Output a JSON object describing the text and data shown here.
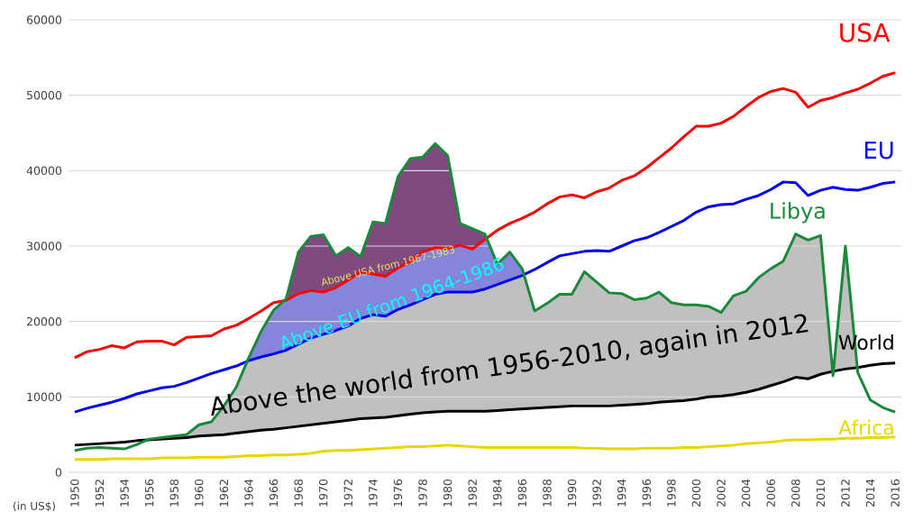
{
  "chart_data": {
    "type": "line",
    "ylabel": "(in US$)",
    "x": [
      1950,
      1951,
      1952,
      1953,
      1954,
      1955,
      1956,
      1957,
      1958,
      1959,
      1960,
      1961,
      1962,
      1963,
      1964,
      1965,
      1966,
      1967,
      1968,
      1969,
      1970,
      1971,
      1972,
      1973,
      1974,
      1975,
      1976,
      1977,
      1978,
      1979,
      1980,
      1981,
      1982,
      1983,
      1984,
      1985,
      1986,
      1987,
      1988,
      1989,
      1990,
      1991,
      1992,
      1993,
      1994,
      1995,
      1996,
      1997,
      1998,
      1999,
      2000,
      2001,
      2002,
      2003,
      2004,
      2005,
      2006,
      2007,
      2008,
      2009,
      2010,
      2011,
      2012,
      2013,
      2014,
      2015,
      2016
    ],
    "series": [
      {
        "name": "USA",
        "color": "#ff0000",
        "values": [
          15200,
          16000,
          16300,
          16800,
          16500,
          17300,
          17400,
          17400,
          16900,
          17900,
          18000,
          18100,
          19000,
          19500,
          20400,
          21400,
          22500,
          22800,
          23700,
          24100,
          23900,
          24500,
          25500,
          26600,
          26300,
          26000,
          27100,
          27900,
          29200,
          29800,
          29700,
          30100,
          29600,
          30900,
          32100,
          33000,
          33700,
          34500,
          35600,
          36500,
          36800,
          36400,
          37200,
          37700,
          38700,
          39300,
          40400,
          41700,
          43000,
          44500,
          45900,
          45900,
          46300,
          47200,
          48500,
          49700,
          50500,
          50900,
          50400,
          48400,
          49300,
          49700,
          50300,
          50800,
          51600,
          52500,
          53000
        ]
      },
      {
        "name": "EU",
        "color": "#0000ff",
        "values": [
          8000,
          8500,
          8900,
          9300,
          9800,
          10400,
          10800,
          11200,
          11400,
          11900,
          12500,
          13100,
          13600,
          14100,
          14800,
          15300,
          15700,
          16200,
          17000,
          17800,
          18300,
          18800,
          19400,
          20400,
          20900,
          20700,
          21600,
          22200,
          22900,
          23600,
          23900,
          23900,
          23900,
          24300,
          24900,
          25500,
          26100,
          26900,
          27800,
          28700,
          29000,
          29300,
          29400,
          29300,
          30000,
          30700,
          31100,
          31800,
          32600,
          33400,
          34500,
          35200,
          35500,
          35600,
          36200,
          36700,
          37500,
          38500,
          38400,
          36700,
          37400,
          37800,
          37500,
          37400,
          37800,
          38300,
          38500
        ]
      },
      {
        "name": "Libya",
        "color": "#1a8a3a",
        "values": [
          2900,
          3200,
          3300,
          3200,
          3100,
          3700,
          4400,
          4600,
          4800,
          5000,
          6300,
          6700,
          8800,
          11300,
          15200,
          18700,
          21500,
          23000,
          29200,
          31300,
          31500,
          28700,
          29800,
          28600,
          33200,
          33000,
          39200,
          41600,
          41800,
          43600,
          42000,
          33000,
          32300,
          31600,
          27600,
          29200,
          27000,
          21400,
          22400,
          23600,
          23600,
          26600,
          25200,
          23800,
          23700,
          22900,
          23100,
          23900,
          22500,
          22200,
          22200,
          22000,
          21200,
          23400,
          24000,
          25800,
          27000,
          28000,
          31600,
          30800,
          31400,
          12800,
          30000,
          13200,
          9600,
          8600,
          8000
        ]
      },
      {
        "name": "World",
        "color": "#000000",
        "values": [
          3600,
          3700,
          3800,
          3900,
          4000,
          4200,
          4300,
          4400,
          4500,
          4600,
          4800,
          4900,
          5000,
          5200,
          5400,
          5600,
          5700,
          5900,
          6100,
          6300,
          6500,
          6700,
          6900,
          7100,
          7200,
          7300,
          7500,
          7700,
          7900,
          8000,
          8100,
          8100,
          8100,
          8100,
          8200,
          8300,
          8400,
          8500,
          8600,
          8700,
          8800,
          8800,
          8800,
          8800,
          8900,
          9000,
          9100,
          9300,
          9400,
          9500,
          9700,
          10000,
          10100,
          10300,
          10600,
          11000,
          11500,
          12000,
          12600,
          12400,
          13000,
          13400,
          13700,
          13900,
          14200,
          14400,
          14500
        ]
      },
      {
        "name": "Africa",
        "color": "#e8d800",
        "values": [
          1700,
          1700,
          1700,
          1800,
          1800,
          1800,
          1800,
          1900,
          1900,
          1900,
          2000,
          2000,
          2000,
          2100,
          2200,
          2200,
          2300,
          2300,
          2400,
          2500,
          2800,
          2900,
          2900,
          3000,
          3100,
          3200,
          3300,
          3400,
          3400,
          3500,
          3600,
          3500,
          3400,
          3300,
          3300,
          3300,
          3300,
          3300,
          3300,
          3300,
          3300,
          3200,
          3200,
          3100,
          3100,
          3100,
          3200,
          3200,
          3200,
          3300,
          3300,
          3400,
          3500,
          3600,
          3800,
          3900,
          4000,
          4200,
          4300,
          4300,
          4400,
          4400,
          4500,
          4500,
          4600,
          4600,
          4700
        ]
      }
    ],
    "annotations": [
      "Above USA from 1967-1983",
      "Above EU from 1964-1986",
      "Above the world from 1956-2010, again in 2012"
    ],
    "xlim": [
      1949.5,
      2016.5
    ],
    "ylim": [
      0,
      60000
    ],
    "xticks": [
      1950,
      1952,
      1954,
      1956,
      1958,
      1960,
      1962,
      1964,
      1966,
      1968,
      1970,
      1972,
      1974,
      1976,
      1978,
      1980,
      1982,
      1984,
      1986,
      1988,
      1990,
      1992,
      1994,
      1996,
      1998,
      2000,
      2002,
      2004,
      2006,
      2008,
      2010,
      2012,
      2014,
      2016
    ],
    "yticks": [
      0,
      10000,
      20000,
      30000,
      40000,
      50000,
      60000
    ],
    "grid": "y",
    "legend": false
  }
}
